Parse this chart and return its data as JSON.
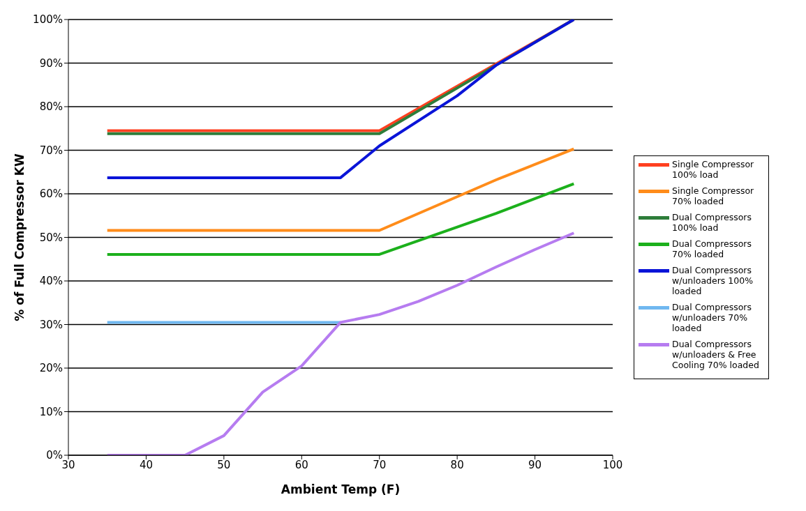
{
  "chart_data": {
    "type": "line",
    "xlabel": "Ambient Temp (F)",
    "ylabel": "% of Full Compressor  KW",
    "xlim": [
      30,
      100
    ],
    "xticks": [
      30,
      40,
      50,
      60,
      70,
      80,
      90,
      100
    ],
    "ylim": [
      0,
      100
    ],
    "yticks": [
      {
        "value": 0,
        "label": "0%"
      },
      {
        "value": 10,
        "label": "10%"
      },
      {
        "value": 20,
        "label": "20%"
      },
      {
        "value": 30,
        "label": "30%"
      },
      {
        "value": 40,
        "label": "40%"
      },
      {
        "value": 50,
        "label": "50%"
      },
      {
        "value": 60,
        "label": "60%"
      },
      {
        "value": 70,
        "label": "70%"
      },
      {
        "value": 80,
        "label": "80%"
      },
      {
        "value": 90,
        "label": "90%"
      },
      {
        "value": 100,
        "label": "100%"
      }
    ],
    "grid": "y",
    "legend": "right",
    "marker": "none",
    "line_style": "solid",
    "series": [
      {
        "name": "Single Compressor 100% load",
        "color": "#ff4020",
        "x": [
          35,
          70,
          95
        ],
        "values": [
          74.5,
          74.5,
          100
        ]
      },
      {
        "name": "Single Compressor 70% loaded",
        "color": "#ff8c1a",
        "x": [
          35,
          70,
          85,
          95
        ],
        "values": [
          51.6,
          51.6,
          63.2,
          70.3
        ]
      },
      {
        "name": "Dual Compressors 100% load",
        "color": "#2e7d3a",
        "x": [
          35,
          70,
          95
        ],
        "values": [
          73.8,
          73.8,
          100
        ]
      },
      {
        "name": "Dual Compressors 70% loaded",
        "color": "#1cb01c",
        "x": [
          35,
          70,
          85,
          95
        ],
        "values": [
          46.1,
          46.1,
          55.5,
          62.3
        ]
      },
      {
        "name": "Dual Compressors w/unloaders 100% loaded",
        "color": "#0a14d8",
        "x": [
          35,
          65,
          70,
          80,
          85,
          95
        ],
        "values": [
          63.7,
          63.7,
          71,
          82.5,
          89.5,
          100
        ]
      },
      {
        "name": "Dual Compressors w/unloaders 70% loaded",
        "color": "#70b8f0",
        "x": [
          35,
          65
        ],
        "values": [
          30.5,
          30.5
        ]
      },
      {
        "name": "Dual Compressors w/unloaders & Free Cooling 70% loaded",
        "color": "#b67cf0",
        "x": [
          35,
          45,
          50,
          55,
          60,
          65,
          70,
          75,
          80,
          85,
          90,
          95
        ],
        "values": [
          0,
          0,
          4.5,
          14.5,
          20.5,
          30.5,
          32.3,
          35.3,
          39,
          43.2,
          47.2,
          51
        ]
      }
    ]
  }
}
